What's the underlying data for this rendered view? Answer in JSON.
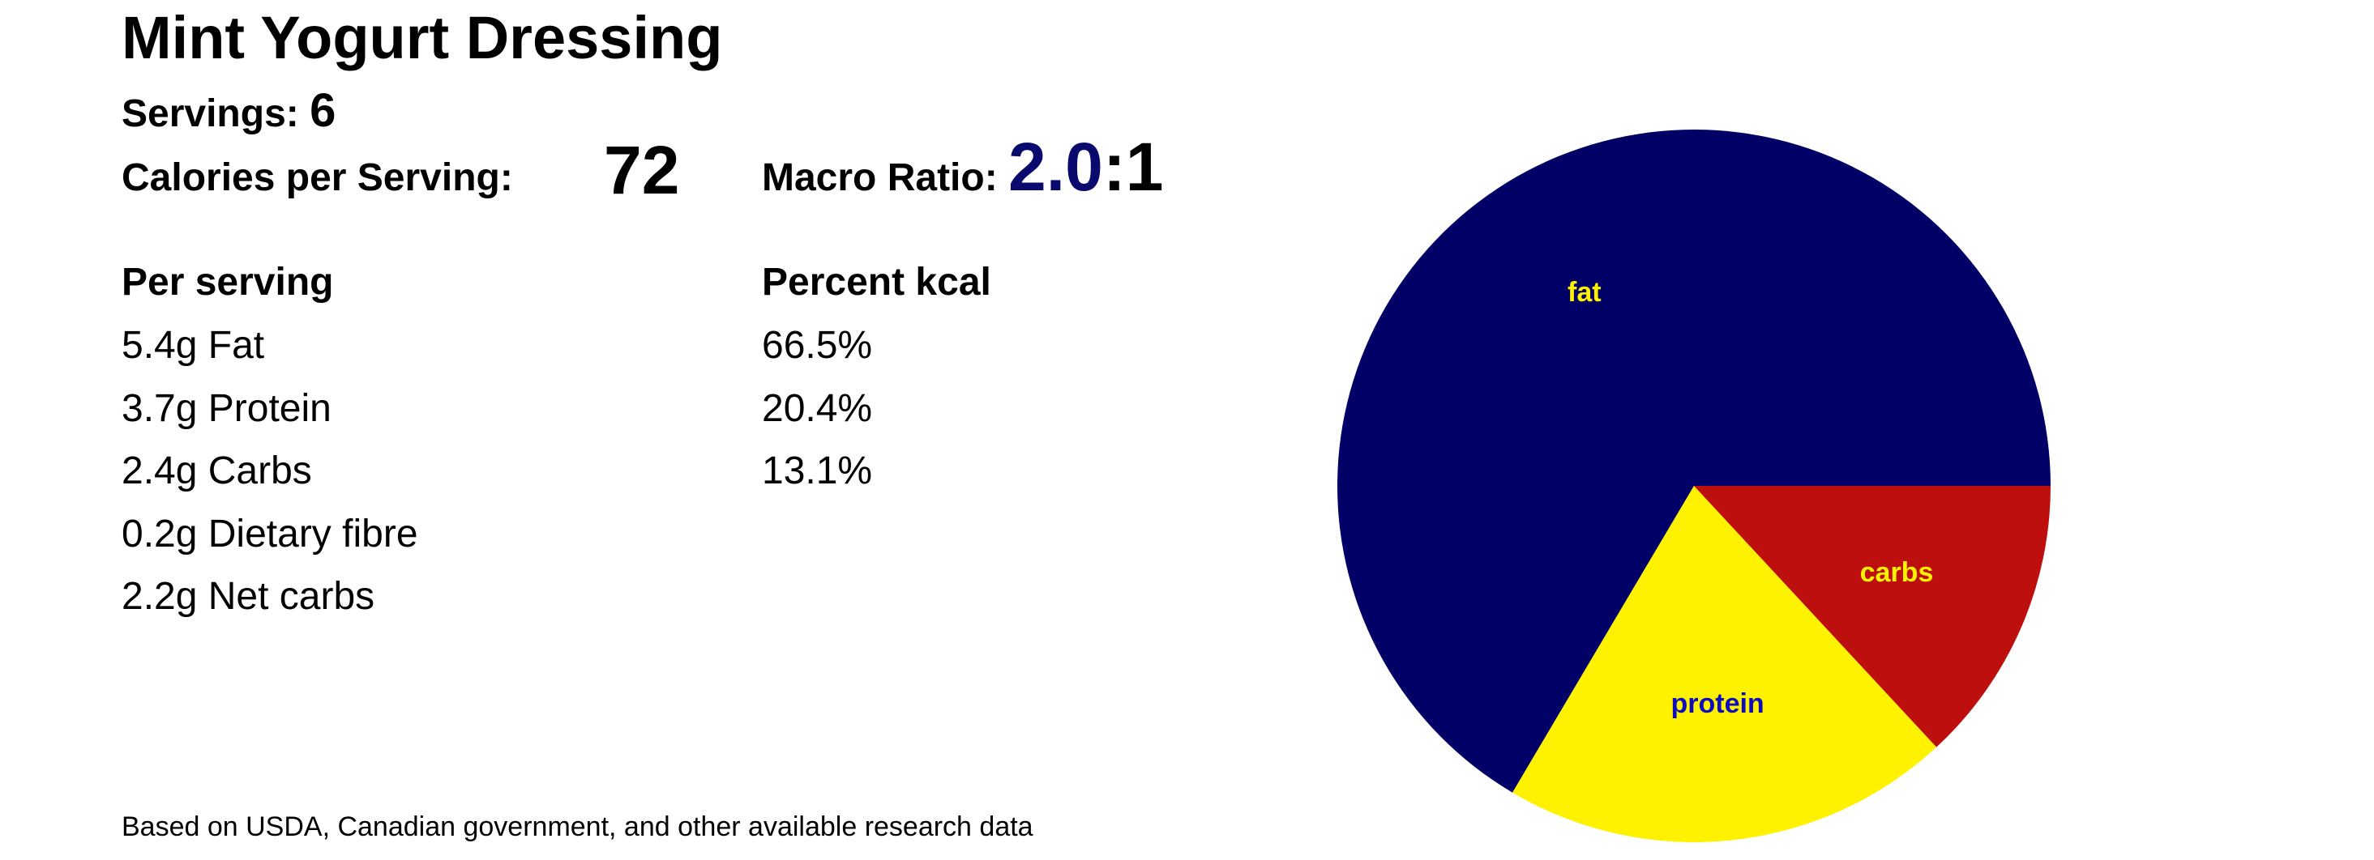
{
  "header": {
    "title": "Mint Yogurt Dressing",
    "servings_label": "Servings:",
    "servings_value": "6",
    "calories_label": "Calories per Serving:",
    "calories_value": "72",
    "macro_ratio_label": "Macro Ratio:",
    "macro_ratio_value": "2.0",
    "macro_ratio_suffix": ":1"
  },
  "per_serving": {
    "heading": "Per serving",
    "items": [
      "5.4g Fat",
      "3.7g Protein",
      "2.4g Carbs",
      "0.2g Dietary fibre",
      "2.2g Net carbs"
    ]
  },
  "percent_kcal": {
    "heading": "Percent kcal",
    "items": [
      "66.5%",
      "20.4%",
      "13.1%"
    ]
  },
  "footnote": "Based on USDA, Canadian government, and other available research data",
  "colors": {
    "fat": "#000066",
    "protein": "#fff200",
    "carbs": "#be0f0f",
    "fat_label": "#fff200",
    "protein_label": "#0d0dbf",
    "carbs_label": "#fff200",
    "ratio_accent": "#0a0a6e"
  },
  "chart_data": {
    "type": "pie",
    "title": "",
    "slices": [
      {
        "label": "fat",
        "value": 66.5
      },
      {
        "label": "protein",
        "value": 20.4
      },
      {
        "label": "carbs",
        "value": 13.1
      }
    ],
    "start_angle_deg": 0,
    "direction": "counterclockwise",
    "legend": "none"
  }
}
